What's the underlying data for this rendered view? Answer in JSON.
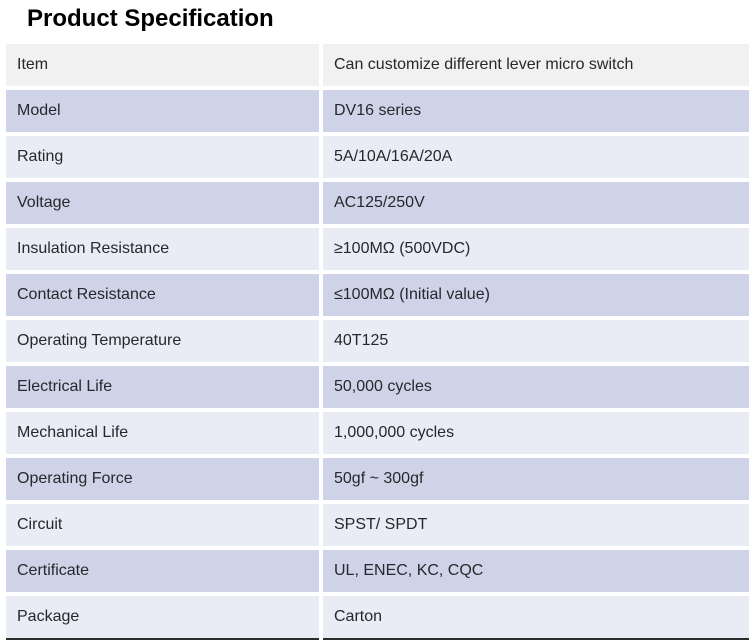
{
  "page": {
    "title": "Product Specification"
  },
  "table": {
    "rows": [
      {
        "label": "Item",
        "value": "Can customize different lever micro switch"
      },
      {
        "label": "Model",
        "value": "DV16 series"
      },
      {
        "label": "Rating",
        "value": "5A/10A/16A/20A"
      },
      {
        "label": "Voltage",
        "value": "AC125/250V"
      },
      {
        "label": "Insulation Resistance",
        "value": "≥100MΩ (500VDC)"
      },
      {
        "label": "Contact Resistance",
        "value": "≤100MΩ (Initial value)"
      },
      {
        "label": "Operating Temperature",
        "value": "40T125"
      },
      {
        "label": "Electrical Life",
        "value": "50,000 cycles"
      },
      {
        "label": "Mechanical Life",
        "value": "1,000,000 cycles"
      },
      {
        "label": "Operating Force",
        "value": "50gf ~ 300gf"
      },
      {
        "label": "Circuit",
        "value": "SPST/ SPDT"
      },
      {
        "label": "Certificate",
        "value": "UL, ENEC, KC, CQC"
      },
      {
        "label": "Package",
        "value": "Carton"
      }
    ]
  },
  "colors": {
    "header_row_bg": "#f1f1f2",
    "dark_row_bg": "#ced3e8",
    "light_row_bg": "#e9ebf5",
    "divider": "#ffffff",
    "frame_border": "#2c2c2c",
    "text": "#27272c"
  }
}
